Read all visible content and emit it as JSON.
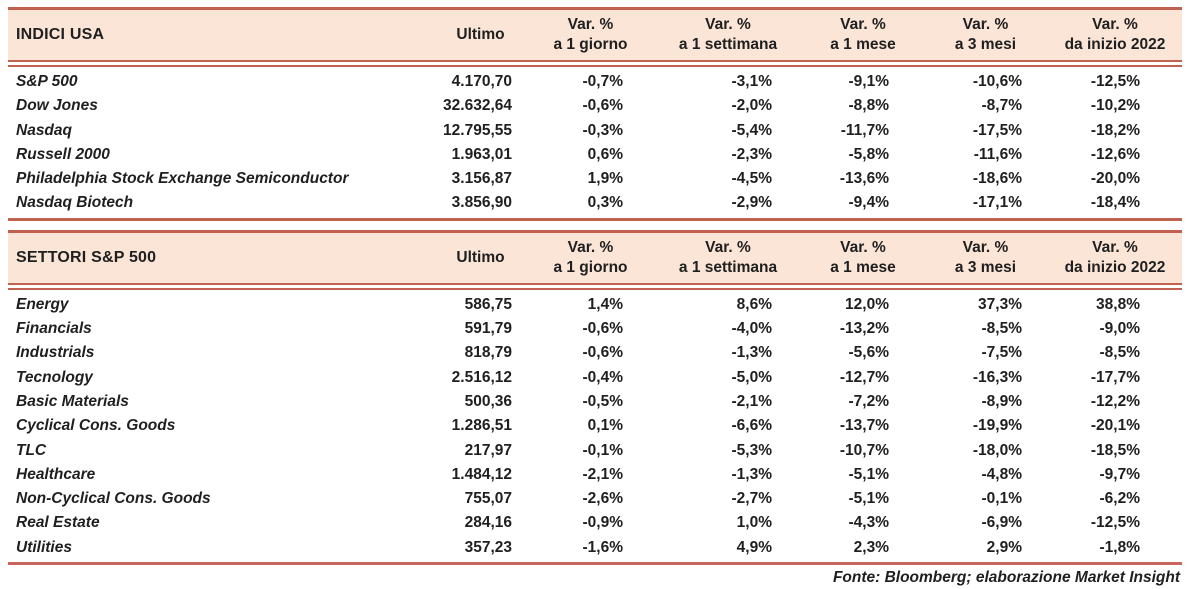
{
  "colors": {
    "band_background": "#fbe5d7",
    "rule_color": "#c0604f",
    "bottom_rule_color": "#c9655a",
    "text_color": "#1f1f1f"
  },
  "columns": {
    "ultimo": "Ultimo",
    "var_label": "Var. %",
    "periods": [
      "a 1 giorno",
      "a 1 settimana",
      "a 1 mese",
      "a 3 mesi",
      "da inizio 2022"
    ]
  },
  "tables": [
    {
      "title": "INDICI USA",
      "rows": [
        {
          "name": "S&P 500",
          "ultimo": "4.170,70",
          "vars": [
            "-0,7%",
            "-3,1%",
            "-9,1%",
            "-10,6%",
            "-12,5%"
          ]
        },
        {
          "name": "Dow Jones",
          "ultimo": "32.632,64",
          "vars": [
            "-0,6%",
            "-2,0%",
            "-8,8%",
            "-8,7%",
            "-10,2%"
          ]
        },
        {
          "name": "Nasdaq",
          "ultimo": "12.795,55",
          "vars": [
            "-0,3%",
            "-5,4%",
            "-11,7%",
            "-17,5%",
            "-18,2%"
          ]
        },
        {
          "name": "Russell 2000",
          "ultimo": "1.963,01",
          "vars": [
            "0,6%",
            "-2,3%",
            "-5,8%",
            "-11,6%",
            "-12,6%"
          ]
        },
        {
          "name": "Philadelphia Stock Exchange Semiconductor",
          "ultimo": "3.156,87",
          "vars": [
            "1,9%",
            "-4,5%",
            "-13,6%",
            "-18,6%",
            "-20,0%"
          ]
        },
        {
          "name": "Nasdaq Biotech",
          "ultimo": "3.856,90",
          "vars": [
            "0,3%",
            "-2,9%",
            "-9,4%",
            "-17,1%",
            "-18,4%"
          ]
        }
      ]
    },
    {
      "title": "SETTORI S&P 500",
      "rows": [
        {
          "name": "Energy",
          "ultimo": "586,75",
          "vars": [
            "1,4%",
            "8,6%",
            "12,0%",
            "37,3%",
            "38,8%"
          ]
        },
        {
          "name": "Financials",
          "ultimo": "591,79",
          "vars": [
            "-0,6%",
            "-4,0%",
            "-13,2%",
            "-8,5%",
            "-9,0%"
          ]
        },
        {
          "name": "Industrials",
          "ultimo": "818,79",
          "vars": [
            "-0,6%",
            "-1,3%",
            "-5,6%",
            "-7,5%",
            "-8,5%"
          ]
        },
        {
          "name": "Tecnology",
          "ultimo": "2.516,12",
          "vars": [
            "-0,4%",
            "-5,0%",
            "-12,7%",
            "-16,3%",
            "-17,7%"
          ]
        },
        {
          "name": "Basic Materials",
          "ultimo": "500,36",
          "vars": [
            "-0,5%",
            "-2,1%",
            "-7,2%",
            "-8,9%",
            "-12,2%"
          ]
        },
        {
          "name": "Cyclical Cons. Goods",
          "ultimo": "1.286,51",
          "vars": [
            "0,1%",
            "-6,6%",
            "-13,7%",
            "-19,9%",
            "-20,1%"
          ]
        },
        {
          "name": "TLC",
          "ultimo": "217,97",
          "vars": [
            "-0,1%",
            "-5,3%",
            "-10,7%",
            "-18,0%",
            "-18,5%"
          ]
        },
        {
          "name": "Healthcare",
          "ultimo": "1.484,12",
          "vars": [
            "-2,1%",
            "-1,3%",
            "-5,1%",
            "-4,8%",
            "-9,7%"
          ]
        },
        {
          "name": "Non-Cyclical Cons. Goods",
          "ultimo": "755,07",
          "vars": [
            "-2,6%",
            "-2,7%",
            "-5,1%",
            "-0,1%",
            "-6,2%"
          ]
        },
        {
          "name": "Real Estate",
          "ultimo": "284,16",
          "vars": [
            "-0,9%",
            "1,0%",
            "-4,3%",
            "-6,9%",
            "-12,5%"
          ]
        },
        {
          "name": "Utilities",
          "ultimo": "357,23",
          "vars": [
            "-1,6%",
            "4,9%",
            "2,3%",
            "2,9%",
            "-1,8%"
          ]
        }
      ]
    }
  ],
  "footer": "Fonte: Bloomberg; elaborazione Market Insight"
}
